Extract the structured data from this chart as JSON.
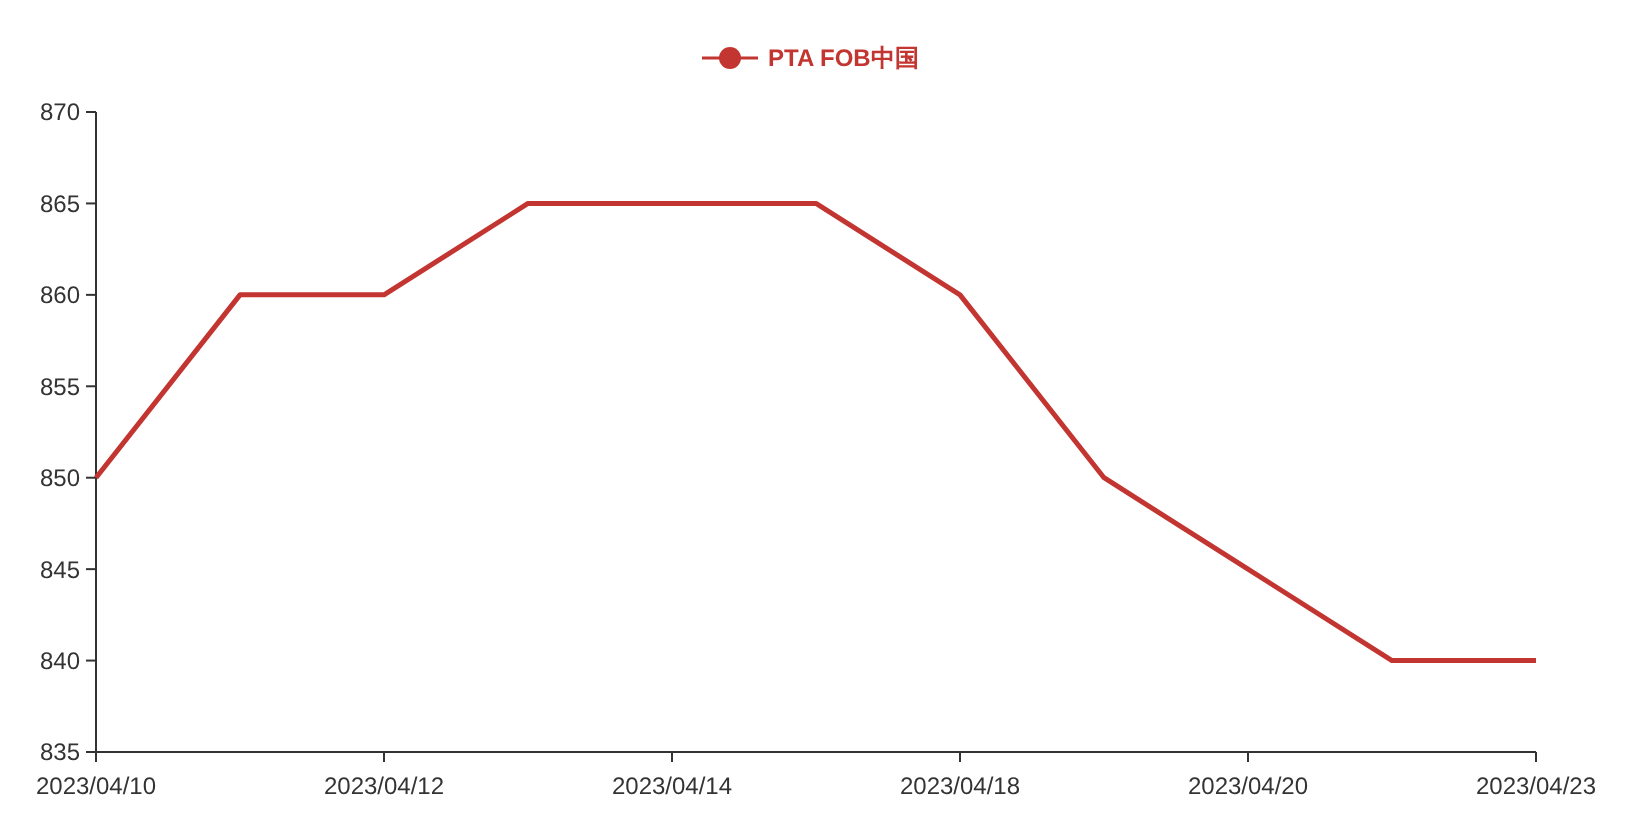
{
  "chart_data": {
    "type": "line",
    "categories": [
      "2023/04/10",
      null,
      "2023/04/12",
      null,
      "2023/04/14",
      null,
      "2023/04/18",
      null,
      "2023/04/20",
      null,
      "2023/04/23"
    ],
    "series": [
      {
        "name": "PTA FOB中国",
        "color": "#c23531",
        "values": [
          850,
          860,
          860,
          865,
          865,
          865,
          860,
          850,
          845,
          840,
          840
        ]
      }
    ],
    "ylim": [
      835,
      870
    ],
    "yticks": [
      835,
      840,
      845,
      850,
      855,
      860,
      865,
      870
    ],
    "grid": false,
    "legend": "top",
    "marker": "none",
    "line_style": "solid"
  }
}
